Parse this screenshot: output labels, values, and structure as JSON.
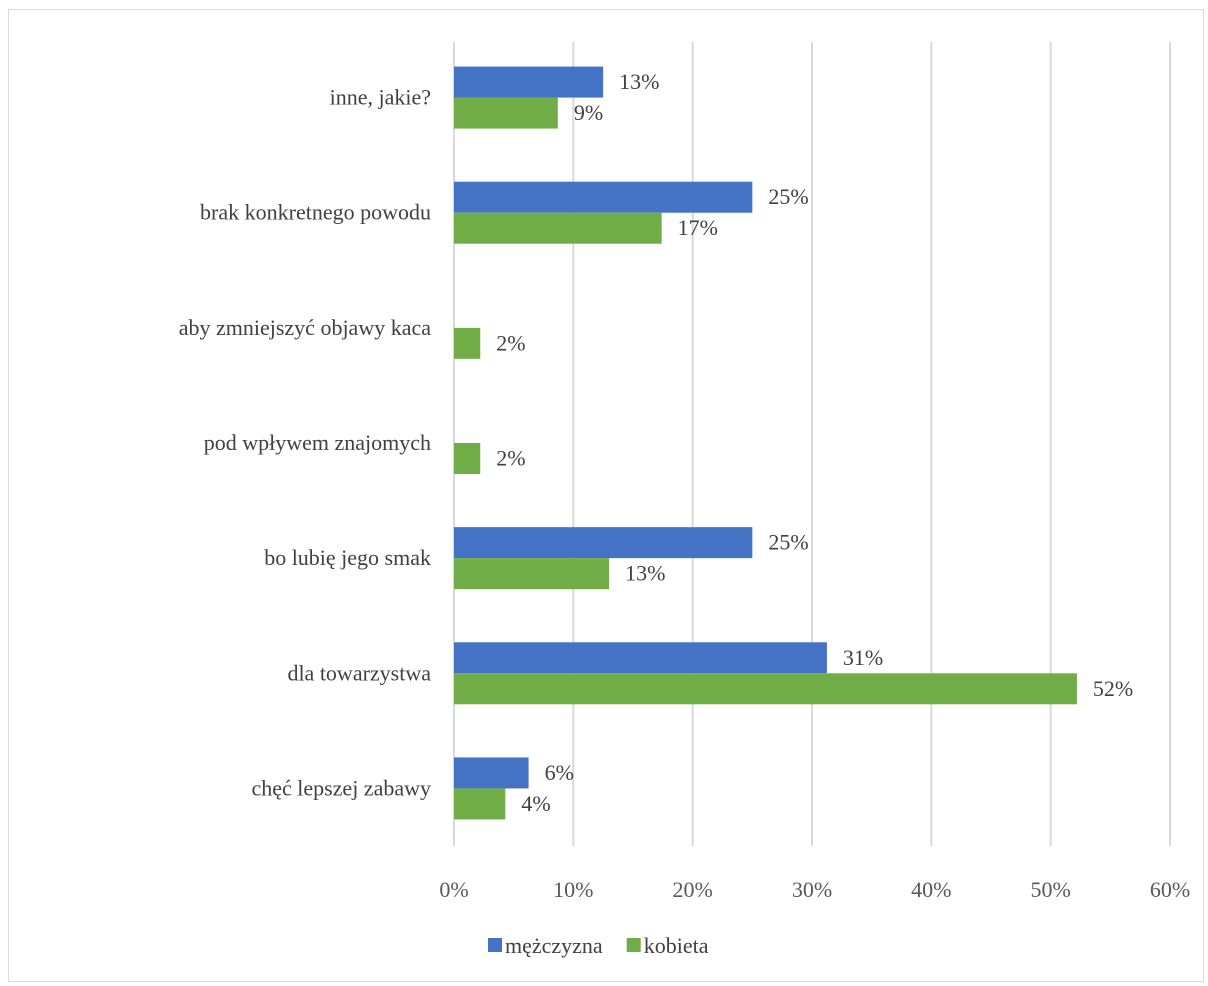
{
  "chart_data": {
    "type": "bar",
    "orientation": "horizontal",
    "categories": [
      "inne, jakie?",
      "brak konkretnego powodu",
      "aby zmniejszyć objawy kaca",
      "pod wpływem znajomych",
      "bo lubię jego smak",
      "dla towarzystwa",
      "chęć lepszej zabawy"
    ],
    "series": [
      {
        "name": "mężczyzna",
        "color": "#4472c4",
        "values": [
          12.5,
          25,
          null,
          null,
          25,
          31.25,
          6.25
        ],
        "labels": [
          "13%",
          "25%",
          "",
          "",
          "25%",
          "31%",
          "6%"
        ]
      },
      {
        "name": "kobieta",
        "color": "#70ad47",
        "values": [
          8.7,
          17.4,
          2.2,
          2.2,
          13,
          52.2,
          4.3
        ],
        "labels": [
          "9%",
          "17%",
          "2%",
          "2%",
          "13%",
          "52%",
          "4%"
        ]
      }
    ],
    "xlim": [
      0,
      60
    ],
    "x_ticks": [
      0,
      10,
      20,
      30,
      40,
      50,
      60
    ],
    "x_tick_labels": [
      "0%",
      "10%",
      "20%",
      "30%",
      "40%",
      "50%",
      "60%"
    ],
    "grid": "vertical",
    "legend_position": "bottom",
    "title": "",
    "xlabel": "",
    "ylabel": ""
  }
}
